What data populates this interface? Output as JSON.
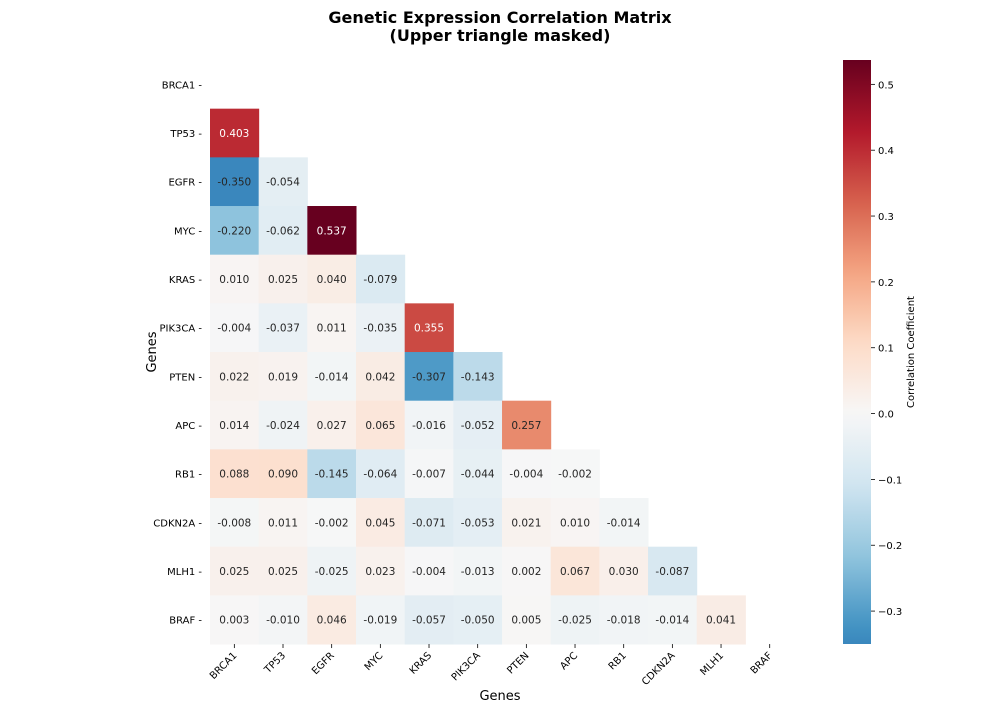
{
  "chart_data": {
    "type": "heatmap",
    "title": "Genetic Expression Correlation Matrix",
    "subtitle": "(Upper triangle masked)",
    "xlabel": "Genes",
    "ylabel": "Genes",
    "colorbar_label": "Correlation Coefficient",
    "colormap": "RdBu_r",
    "center": 0,
    "vmin": -0.35,
    "vmax": 0.537,
    "colorbar_ticks": [
      0.5,
      0.4,
      0.3,
      0.2,
      0.1,
      0.0,
      -0.1,
      -0.2,
      -0.3
    ],
    "colorbar_tick_labels": [
      "0.5",
      "0.4",
      "0.3",
      "0.2",
      "0.1",
      "0.0",
      "−0.1",
      "−0.2",
      "−0.3"
    ],
    "mask": "upper triangle including diagonal",
    "genes": [
      "BRCA1",
      "TP53",
      "EGFR",
      "MYC",
      "KRAS",
      "PIK3CA",
      "PTEN",
      "APC",
      "RB1",
      "CDKN2A",
      "MLH1",
      "BRAF"
    ],
    "lower_values": [
      [],
      [
        0.403
      ],
      [
        -0.35,
        -0.054
      ],
      [
        -0.22,
        -0.062,
        0.537
      ],
      [
        0.01,
        0.025,
        0.04,
        -0.079
      ],
      [
        -0.004,
        -0.037,
        0.011,
        -0.035,
        0.355
      ],
      [
        0.022,
        0.019,
        -0.014,
        0.042,
        -0.307,
        -0.143
      ],
      [
        0.014,
        -0.024,
        0.027,
        0.065,
        -0.016,
        -0.052,
        0.257
      ],
      [
        0.088,
        0.09,
        -0.145,
        -0.064,
        -0.007,
        -0.044,
        -0.004,
        -0.002
      ],
      [
        -0.008,
        0.011,
        -0.002,
        0.045,
        -0.071,
        -0.053,
        0.021,
        0.01,
        -0.014
      ],
      [
        0.025,
        0.025,
        -0.025,
        0.023,
        -0.004,
        -0.013,
        0.002,
        0.067,
        0.03,
        -0.087
      ],
      [
        0.003,
        -0.01,
        0.046,
        -0.019,
        -0.057,
        -0.05,
        0.005,
        -0.025,
        -0.018,
        -0.014,
        0.041
      ]
    ]
  }
}
